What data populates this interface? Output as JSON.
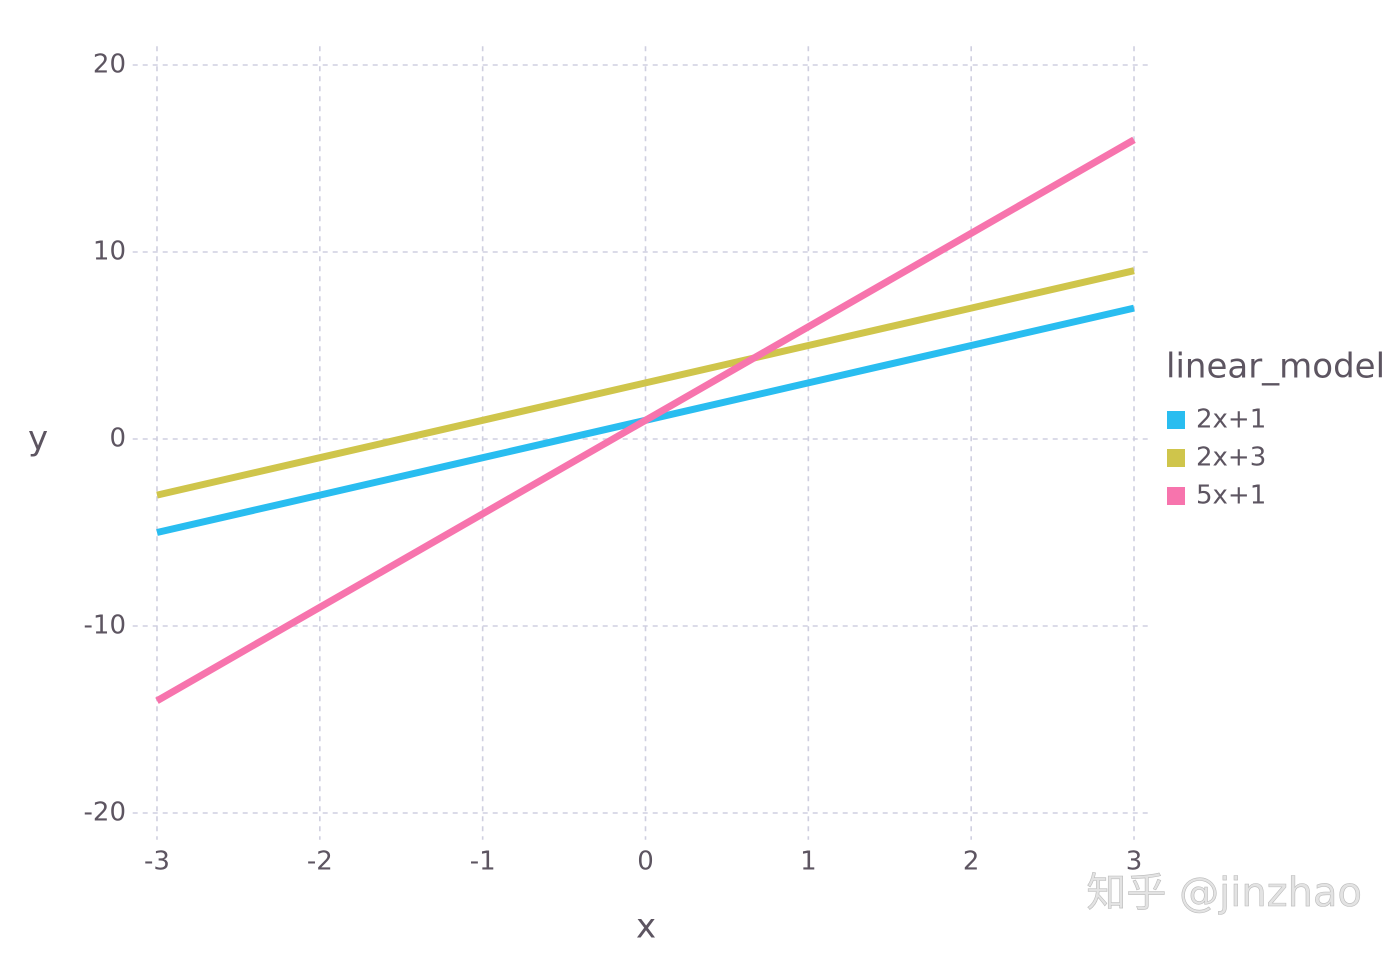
{
  "chart_data": {
    "type": "line",
    "x": [
      -3,
      -2,
      -1,
      0,
      1,
      2,
      3
    ],
    "series": [
      {
        "name": "2x+1",
        "color": "#29bdf0",
        "values": [
          -5,
          -3,
          -1,
          1,
          3,
          5,
          7
        ]
      },
      {
        "name": "2x+3",
        "color": "#cfc54b",
        "values": [
          -3,
          -1,
          1,
          3,
          5,
          7,
          9
        ]
      },
      {
        "name": "5x+1",
        "color": "#f774ad",
        "values": [
          -14,
          -9,
          -4,
          1,
          6,
          11,
          16
        ]
      }
    ],
    "xlabel": "x",
    "ylabel": "y",
    "legend_title": "linear_model",
    "xlim": [
      -3.1,
      3.1
    ],
    "ylim": [
      -21,
      21
    ],
    "xticks": [
      -3,
      -2,
      -1,
      0,
      1,
      2,
      3
    ],
    "yticks": [
      -20,
      -10,
      0,
      10,
      20
    ],
    "grid": true,
    "legend": "right"
  },
  "watermark": "知乎 @jinzhao"
}
